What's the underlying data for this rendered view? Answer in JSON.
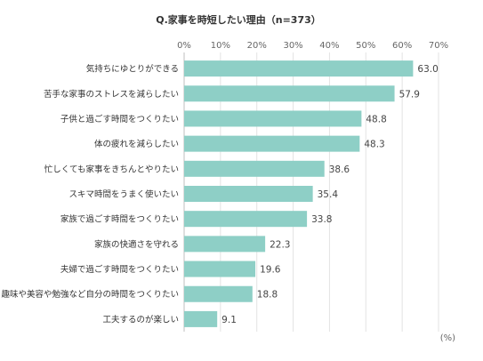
{
  "chart_data": {
    "type": "bar",
    "orientation": "horizontal",
    "title": "Q.家事を時短したい理由（n=373）",
    "unit_label": "(%)",
    "xlim": [
      0,
      70
    ],
    "x_ticks": [
      "0%",
      "10%",
      "20%",
      "30%",
      "40%",
      "50%",
      "60%",
      "70%"
    ],
    "grid": true,
    "bar_color": "#8ecfc6",
    "categories": [
      "気持ちにゆとりができる",
      "苦手な家事のストレスを減らしたい",
      "子供と過ごす時間をつくりたい",
      "体の疲れを減らしたい",
      "忙しくても家事をきちんとやりたい",
      "スキマ時間をうまく使いたい",
      "家族で過ごす時間をつくりたい",
      "家族の快適さを守れる",
      "夫婦で過ごす時間をつくりたい",
      "趣味や美容や勉強など自分の時間をつくりたい",
      "工夫するのが楽しい"
    ],
    "values": [
      63.0,
      57.9,
      48.8,
      48.3,
      38.6,
      35.4,
      33.8,
      22.3,
      19.6,
      18.8,
      9.1
    ],
    "value_labels": [
      "63.0",
      "57.9",
      "48.8",
      "48.3",
      "38.6",
      "35.4",
      "33.8",
      "22.3",
      "19.6",
      "18.8",
      "9.1"
    ]
  }
}
